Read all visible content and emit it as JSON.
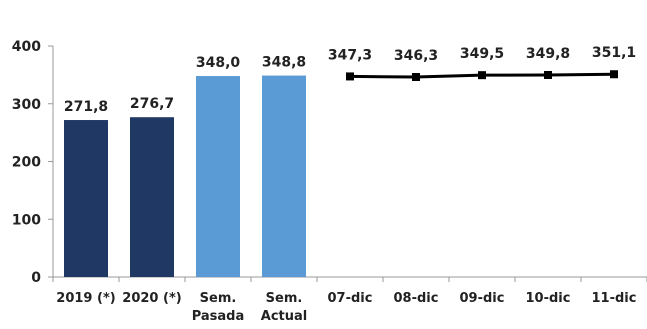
{
  "chart_data": {
    "type": "bar",
    "categories": [
      [
        "2019 (*)"
      ],
      [
        "2020 (*)"
      ],
      [
        "Sem.",
        "Pasada"
      ],
      [
        "Sem.",
        "Actual"
      ],
      [
        "07-dic"
      ],
      [
        "08-dic"
      ],
      [
        "09-dic"
      ],
      [
        "10-dic"
      ],
      [
        "11-dic"
      ]
    ],
    "bars": [
      {
        "category_index": 0,
        "value": 271.8,
        "label": "271,8",
        "color": "#1f3864"
      },
      {
        "category_index": 1,
        "value": 276.7,
        "label": "276,7",
        "color": "#1f3864"
      },
      {
        "category_index": 2,
        "value": 348.0,
        "label": "348,0",
        "color": "#5b9bd5"
      },
      {
        "category_index": 3,
        "value": 348.8,
        "label": "348,8",
        "color": "#5b9bd5"
      }
    ],
    "line": {
      "category_indices": [
        4,
        5,
        6,
        7,
        8
      ],
      "values": [
        347.3,
        346.3,
        349.5,
        349.8,
        351.1
      ],
      "labels": [
        "347,3",
        "346,3",
        "349,5",
        "349,8",
        "351,1"
      ],
      "color": "#000000",
      "marker": "square"
    },
    "yticks": [
      "0",
      "100",
      "200",
      "300",
      "400"
    ],
    "ylim": [
      0,
      400
    ],
    "grid": false,
    "legend": "none"
  }
}
